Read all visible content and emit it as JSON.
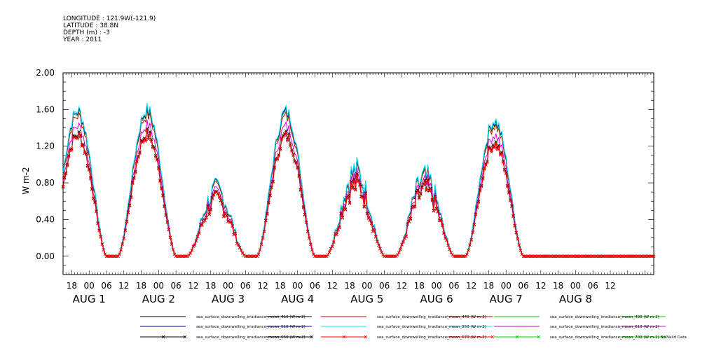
{
  "header": {
    "longitude": "LONGITUDE : 121.9W(-121.9)",
    "latitude": "LATITUDE : 38.8N",
    "depth": "DEPTH (m) : -3",
    "year": "YEAR : 2011"
  },
  "chart_data": {
    "type": "line",
    "ylabel": "W m-2",
    "ylim": [
      -0.2,
      2.0
    ],
    "yticks": [
      "2.00",
      "1.60",
      "1.20",
      "0.80",
      "0.40",
      "0.00"
    ],
    "hour_ticks": [
      "18",
      "00",
      "06",
      "12",
      "18",
      "00",
      "06",
      "12",
      "18",
      "00",
      "06",
      "12",
      "18",
      "00",
      "06",
      "12",
      "18",
      "00",
      "06",
      "12",
      "18",
      "00",
      "06",
      "12",
      "18",
      "00",
      "06",
      "12",
      "18",
      "00",
      "06",
      "12"
    ],
    "day_labels": [
      "AUG 1",
      "AUG 2",
      "AUG 3",
      "AUG 4",
      "AUG 5",
      "AUG 6",
      "AUG 7",
      "AUG 8"
    ],
    "x_range_hours": [
      -9,
      195
    ],
    "days": [
      {
        "label": "AUG 1",
        "peak_hour": 13.5,
        "peak": 1.61,
        "noisy": false
      },
      {
        "label": "AUG 2",
        "peak_hour": 13.5,
        "peak": 1.62,
        "noisy": false
      },
      {
        "label": "AUG 3",
        "peak_hour": 13.5,
        "peak": 0.78,
        "noisy": true
      },
      {
        "label": "AUG 4",
        "peak_hour": 13.5,
        "peak": 1.6,
        "noisy": false
      },
      {
        "label": "AUG 5",
        "peak_hour": 13.5,
        "peak": 1.0,
        "noisy": true
      },
      {
        "label": "AUG 6",
        "peak_hour": 13.5,
        "peak": 0.92,
        "noisy": true
      },
      {
        "label": "AUG 7",
        "peak_hour": 13.5,
        "peak": 1.5,
        "noisy": false
      }
    ],
    "series": [
      {
        "name": "sea_surface_downwelling_irradiance_mean_410 (W m-2)",
        "color": "#000000",
        "factor": 1.0,
        "marker": false
      },
      {
        "name": "sea_surface_downwelling_irradiance_mean_440 (W m-2)",
        "color": "#cc0000",
        "factor": 0.97,
        "marker": false
      },
      {
        "name": "sea_surface_downwelling_irradiance_mean_490 (W m-2)",
        "color": "#00cc00",
        "factor": 0.99,
        "marker": false
      },
      {
        "name": "sea_surface_downwelling_irradiance_mean_510 (W m-2)",
        "color": "#0000cc",
        "factor": 1.0,
        "marker": false
      },
      {
        "name": "sea_surface_downwelling_irradiance_mean_550 (W m-2)",
        "color": "#00e5ee",
        "factor": 1.01,
        "marker": false
      },
      {
        "name": "sea_surface_downwelling_irradiance_mean_610 (W m-2)",
        "color": "#dd00dd",
        "factor": 0.9,
        "marker": false
      },
      {
        "name": "sea_surface_downwelling_irradiance_mean_650 (W m-2)",
        "color": "#000000",
        "factor": 0.84,
        "marker": true
      },
      {
        "name": "sea_surface_downwelling_irradiance_mean_670 (W m-2)",
        "color": "#ff0000",
        "factor": 0.83,
        "marker": true
      },
      {
        "name": "sea_surface_downwelling_irradiance_mean_700 (W m-2) No Valid Data",
        "color": "#00cc00",
        "factor": 0,
        "marker": true
      }
    ]
  }
}
